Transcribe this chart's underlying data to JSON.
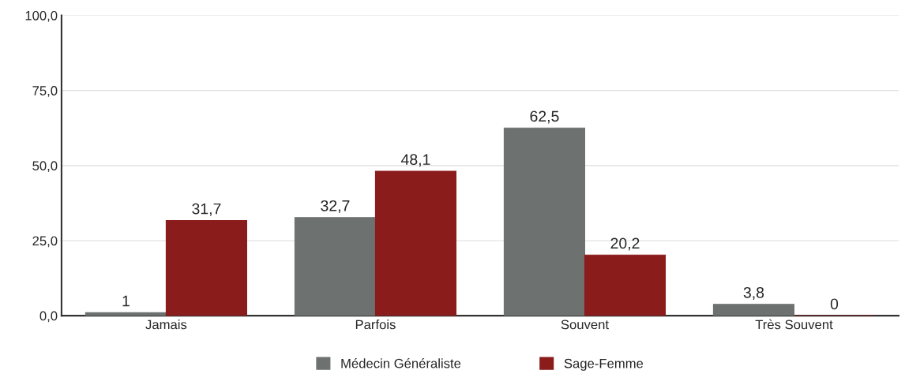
{
  "chart_data": {
    "type": "bar",
    "categories": [
      "Jamais",
      "Parfois",
      "Souvent",
      "Très Souvent"
    ],
    "series": [
      {
        "name": "Médecin Généraliste",
        "color": "#6d7270",
        "values": [
          1,
          32.7,
          62.5,
          3.8
        ],
        "value_labels": [
          "1",
          "32,7",
          "62,5",
          "3,8"
        ]
      },
      {
        "name": "Sage-Femme",
        "color": "#8b1c1c",
        "values": [
          31.7,
          48.1,
          20.2,
          0
        ],
        "value_labels": [
          "31,7",
          "48,1",
          "20,2",
          "0"
        ]
      }
    ],
    "ylim": [
      0,
      100
    ],
    "yticks": [
      {
        "value": 0,
        "label": "0,0"
      },
      {
        "value": 25,
        "label": "25,0"
      },
      {
        "value": 50,
        "label": "50,0"
      },
      {
        "value": 75,
        "label": "75,0"
      },
      {
        "value": 100,
        "label": "100,0"
      }
    ],
    "grid": "y",
    "legend": "bottom"
  }
}
